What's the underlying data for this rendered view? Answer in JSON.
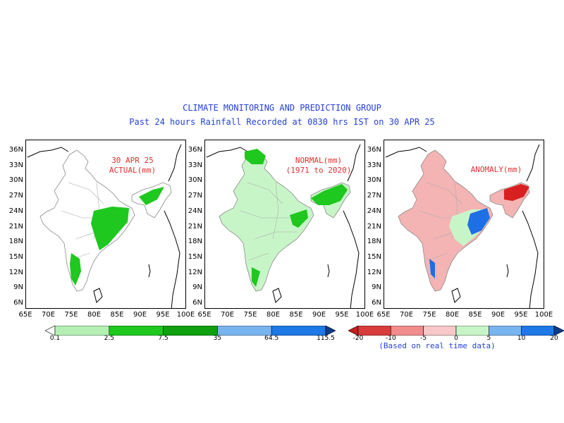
{
  "header": {
    "title": "CLIMATE MONITORING AND PREDICTION GROUP",
    "subtitle": "Past 24 hours Rainfall Recorded at 0830 hrs IST on 30 APR 25"
  },
  "axes": {
    "lat_labels": [
      "36N",
      "33N",
      "30N",
      "27N",
      "24N",
      "21N",
      "18N",
      "15N",
      "12N",
      "9N",
      "6N"
    ],
    "lon_labels": [
      "65E",
      "70E",
      "75E",
      "80E",
      "85E",
      "90E",
      "95E",
      "100E"
    ]
  },
  "panels": [
    {
      "id": "actual",
      "label_line1": "30 APR 25",
      "label_line2": "ACTUAL(mm)",
      "colors": {
        "base": "#ffffff",
        "rain": "#1ec81e"
      }
    },
    {
      "id": "normal",
      "label_line1": "NORMAL(mm)",
      "label_line2": "(1971 to 2020)",
      "colors": {
        "base": "#c8f5c8",
        "rain": "#1ec81e"
      }
    },
    {
      "id": "anomaly",
      "label_line1": "ANOMALY(mm)",
      "label_line2": "",
      "colors": {
        "base": "#f4b4b4",
        "pos": "#1e6ee6",
        "neg": "#d82020"
      }
    }
  ],
  "colorbars": {
    "rain": {
      "ticks": [
        "0.1",
        "2.5",
        "7.5",
        "35",
        "64.5",
        "115.5"
      ],
      "colors": [
        "#ffffff",
        "#b4f0b4",
        "#1ec81e",
        "#0ea00e",
        "#78b4f0",
        "#1e78e6",
        "#0c3c8c"
      ]
    },
    "anomaly": {
      "ticks": [
        "-20",
        "-10",
        "-5",
        "0",
        "5",
        "10",
        "20"
      ],
      "colors": [
        "#c81e1e",
        "#d83c3c",
        "#f08c8c",
        "#f8c8c8",
        "#c8f5c8",
        "#78b4f0",
        "#1e78e6",
        "#0c3c8c"
      ],
      "note": "(Based on real time data)"
    }
  }
}
